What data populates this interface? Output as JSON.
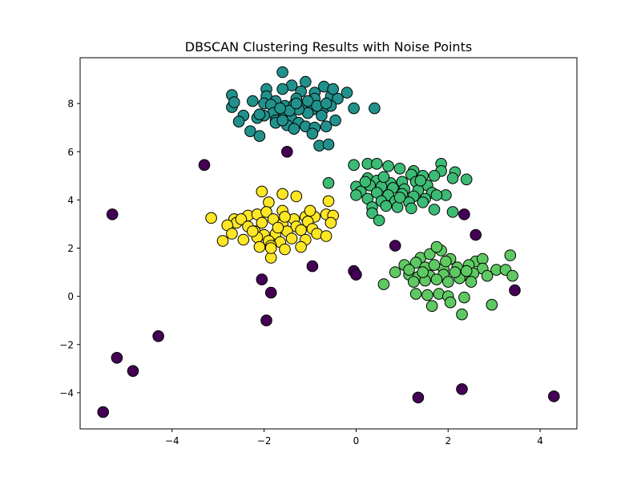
{
  "chart_data": {
    "type": "scatter",
    "title": "DBSCAN Clustering Results with Noise Points",
    "xlabel": "",
    "ylabel": "",
    "xlim": [
      -6.0,
      4.8
    ],
    "ylim": [
      -5.5,
      9.9
    ],
    "xticks": [
      -4,
      -2,
      0,
      2,
      4
    ],
    "yticks": [
      -4,
      -2,
      0,
      2,
      4,
      6,
      8
    ],
    "xtick_labels": [
      "−4",
      "−2",
      "0",
      "2",
      "4"
    ],
    "ytick_labels": [
      "−4",
      "−2",
      "0",
      "2",
      "4",
      "6",
      "8"
    ],
    "grid": false,
    "legend": "none",
    "marker_edge_color": "#000000",
    "series": [
      {
        "color": "#440154",
        "points": [
          [
            -5.5,
            -4.8
          ],
          [
            -5.2,
            -2.55
          ],
          [
            -4.85,
            -3.1
          ],
          [
            -4.3,
            -1.65
          ],
          [
            -5.3,
            3.4
          ],
          [
            -3.3,
            5.45
          ],
          [
            -1.5,
            6.0
          ],
          [
            -2.05,
            0.7
          ],
          [
            -1.85,
            0.15
          ],
          [
            -1.95,
            -1.0
          ],
          [
            -0.95,
            1.25
          ],
          [
            -0.05,
            1.05
          ],
          [
            0.0,
            0.9
          ],
          [
            0.85,
            2.1
          ],
          [
            1.35,
            -4.2
          ],
          [
            2.3,
            -3.85
          ],
          [
            2.35,
            3.4
          ],
          [
            2.6,
            2.55
          ],
          [
            3.45,
            0.25
          ],
          [
            4.3,
            -4.15
          ]
        ]
      },
      {
        "color": "#21918c",
        "points": [
          [
            -1.6,
            9.3
          ],
          [
            -1.4,
            8.75
          ],
          [
            -1.1,
            8.9
          ],
          [
            -0.7,
            8.7
          ],
          [
            -0.2,
            8.45
          ],
          [
            -1.95,
            8.6
          ],
          [
            -2.7,
            8.35
          ],
          [
            -1.95,
            8.3
          ],
          [
            -1.6,
            8.6
          ],
          [
            -1.2,
            8.5
          ],
          [
            -0.9,
            8.45
          ],
          [
            -0.55,
            8.3
          ],
          [
            -0.4,
            8.2
          ],
          [
            -1.3,
            8.2
          ],
          [
            -1.75,
            8.1
          ],
          [
            -2.0,
            8.0
          ],
          [
            -1.85,
            7.95
          ],
          [
            -1.55,
            7.9
          ],
          [
            -2.25,
            8.1
          ],
          [
            -2.7,
            7.85
          ],
          [
            -2.65,
            8.05
          ],
          [
            -1.35,
            7.95
          ],
          [
            -1.15,
            7.85
          ],
          [
            -0.95,
            7.75
          ],
          [
            -0.7,
            7.8
          ],
          [
            -0.55,
            7.9
          ],
          [
            -0.05,
            7.8
          ],
          [
            0.4,
            7.8
          ],
          [
            -1.8,
            7.6
          ],
          [
            -2.0,
            7.5
          ],
          [
            -2.15,
            7.4
          ],
          [
            -2.45,
            7.5
          ],
          [
            -2.55,
            7.25
          ],
          [
            -1.75,
            7.3
          ],
          [
            -1.55,
            7.5
          ],
          [
            -1.4,
            7.35
          ],
          [
            -1.25,
            7.2
          ],
          [
            -1.1,
            7.05
          ],
          [
            -0.9,
            7.0
          ],
          [
            -0.65,
            7.05
          ],
          [
            -0.45,
            7.3
          ],
          [
            -0.75,
            7.5
          ],
          [
            -1.5,
            7.1
          ],
          [
            -1.75,
            7.2
          ],
          [
            -2.3,
            6.85
          ],
          [
            -2.1,
            6.65
          ],
          [
            -1.6,
            7.3
          ],
          [
            -1.35,
            6.95
          ],
          [
            -0.95,
            6.75
          ],
          [
            -0.8,
            6.25
          ],
          [
            -0.6,
            6.3
          ],
          [
            -0.9,
            8.2
          ],
          [
            -1.05,
            7.6
          ],
          [
            -1.25,
            7.75
          ],
          [
            -1.45,
            7.7
          ],
          [
            -1.65,
            7.8
          ],
          [
            -2.1,
            7.55
          ],
          [
            -1.3,
            8.0
          ],
          [
            -1.05,
            8.1
          ],
          [
            -0.85,
            7.9
          ],
          [
            -0.5,
            8.6
          ],
          [
            -0.65,
            8.0
          ]
        ]
      },
      {
        "color": "#5ec962",
        "points": [
          [
            1.85,
            1.9
          ],
          [
            1.4,
            1.6
          ],
          [
            1.6,
            1.75
          ],
          [
            1.75,
            2.05
          ],
          [
            2.05,
            1.55
          ],
          [
            2.6,
            1.45
          ],
          [
            2.75,
            1.55
          ],
          [
            3.35,
            1.7
          ],
          [
            1.05,
            1.3
          ],
          [
            1.3,
            1.4
          ],
          [
            1.5,
            1.2
          ],
          [
            1.9,
            1.15
          ],
          [
            2.2,
            1.2
          ],
          [
            2.45,
            1.3
          ],
          [
            2.75,
            1.15
          ],
          [
            3.05,
            1.1
          ],
          [
            3.25,
            1.1
          ],
          [
            3.4,
            0.85
          ],
          [
            0.85,
            1.0
          ],
          [
            1.15,
            0.9
          ],
          [
            1.35,
            0.8
          ],
          [
            1.6,
            0.85
          ],
          [
            1.9,
            0.9
          ],
          [
            2.3,
            0.85
          ],
          [
            2.55,
            0.95
          ],
          [
            2.85,
            0.85
          ],
          [
            1.25,
            0.6
          ],
          [
            1.5,
            0.65
          ],
          [
            1.75,
            0.7
          ],
          [
            2.0,
            0.6
          ],
          [
            2.25,
            0.75
          ],
          [
            2.5,
            0.6
          ],
          [
            0.6,
            0.5
          ],
          [
            1.3,
            0.1
          ],
          [
            1.55,
            0.05
          ],
          [
            1.8,
            0.1
          ],
          [
            2.0,
            0.0
          ],
          [
            2.35,
            -0.05
          ],
          [
            2.95,
            -0.35
          ],
          [
            1.65,
            -0.4
          ],
          [
            2.05,
            -0.25
          ],
          [
            2.3,
            -0.75
          ],
          [
            1.95,
            1.45
          ],
          [
            1.7,
            1.3
          ],
          [
            2.15,
            1.0
          ],
          [
            2.4,
            1.05
          ],
          [
            1.45,
            1.0
          ],
          [
            1.15,
            1.1
          ]
        ]
      },
      {
        "color": "#fde725",
        "points": [
          [
            -2.05,
            4.35
          ],
          [
            -1.6,
            4.25
          ],
          [
            -1.3,
            4.15
          ],
          [
            -0.6,
            3.95
          ],
          [
            -1.9,
            3.9
          ],
          [
            -3.15,
            3.25
          ],
          [
            -2.65,
            3.2
          ],
          [
            -2.6,
            3.05
          ],
          [
            -2.35,
            3.35
          ],
          [
            -2.15,
            3.4
          ],
          [
            -1.95,
            3.5
          ],
          [
            -1.6,
            3.55
          ],
          [
            -1.35,
            3.2
          ],
          [
            -1.1,
            3.3
          ],
          [
            -0.9,
            3.3
          ],
          [
            -0.65,
            3.4
          ],
          [
            -0.5,
            3.35
          ],
          [
            -2.5,
            3.2
          ],
          [
            -2.8,
            2.95
          ],
          [
            -2.35,
            2.9
          ],
          [
            -2.05,
            3.05
          ],
          [
            -1.8,
            3.2
          ],
          [
            -1.6,
            3.0
          ],
          [
            -1.3,
            2.9
          ],
          [
            -1.05,
            3.1
          ],
          [
            -0.55,
            3.05
          ],
          [
            -2.7,
            2.6
          ],
          [
            -2.2,
            2.7
          ],
          [
            -2.0,
            2.55
          ],
          [
            -1.75,
            2.6
          ],
          [
            -1.5,
            2.7
          ],
          [
            -1.2,
            2.75
          ],
          [
            -0.95,
            2.8
          ],
          [
            -0.85,
            2.6
          ],
          [
            -0.65,
            2.5
          ],
          [
            -2.9,
            2.3
          ],
          [
            -2.45,
            2.35
          ],
          [
            -2.15,
            2.45
          ],
          [
            -1.9,
            2.3
          ],
          [
            -1.65,
            2.25
          ],
          [
            -1.4,
            2.4
          ],
          [
            -1.1,
            2.35
          ],
          [
            -2.1,
            2.05
          ],
          [
            -1.85,
            2.1
          ],
          [
            -1.55,
            1.95
          ],
          [
            -1.2,
            2.05
          ],
          [
            -1.85,
            1.6
          ],
          [
            -1.55,
            3.3
          ],
          [
            -2.25,
            2.7
          ],
          [
            -1.7,
            2.85
          ],
          [
            -1.0,
            3.55
          ],
          [
            -1.85,
            2.0
          ]
        ]
      },
      {
        "color": "#3cbb75",
        "points": [
          [
            -0.05,
            5.45
          ],
          [
            0.25,
            5.5
          ],
          [
            0.45,
            5.5
          ],
          [
            0.7,
            5.4
          ],
          [
            0.95,
            5.3
          ],
          [
            1.25,
            5.2
          ],
          [
            1.85,
            5.5
          ],
          [
            1.85,
            5.2
          ],
          [
            2.15,
            5.15
          ],
          [
            2.4,
            4.85
          ],
          [
            2.1,
            4.9
          ],
          [
            1.7,
            5.0
          ],
          [
            1.45,
            5.0
          ],
          [
            1.2,
            5.05
          ],
          [
            0.25,
            4.9
          ],
          [
            0.45,
            4.8
          ],
          [
            0.75,
            4.7
          ],
          [
            1.0,
            4.75
          ],
          [
            1.3,
            4.75
          ],
          [
            1.55,
            4.6
          ],
          [
            0.0,
            4.55
          ],
          [
            0.3,
            4.6
          ],
          [
            0.55,
            4.55
          ],
          [
            0.8,
            4.5
          ],
          [
            1.05,
            4.45
          ],
          [
            1.35,
            4.4
          ],
          [
            1.65,
            4.3
          ],
          [
            1.95,
            4.2
          ],
          [
            -0.6,
            4.7
          ],
          [
            0.1,
            4.35
          ],
          [
            0.45,
            4.3
          ],
          [
            0.7,
            4.2
          ],
          [
            1.0,
            4.25
          ],
          [
            1.25,
            4.15
          ],
          [
            1.5,
            4.05
          ],
          [
            1.75,
            4.2
          ],
          [
            0.0,
            4.2
          ],
          [
            0.25,
            4.05
          ],
          [
            0.55,
            3.95
          ],
          [
            0.85,
            3.95
          ],
          [
            1.15,
            3.9
          ],
          [
            1.45,
            3.9
          ],
          [
            0.35,
            3.7
          ],
          [
            0.65,
            3.75
          ],
          [
            0.9,
            3.7
          ],
          [
            1.2,
            3.65
          ],
          [
            1.7,
            3.6
          ],
          [
            0.35,
            3.45
          ],
          [
            0.5,
            3.15
          ],
          [
            2.1,
            3.5
          ],
          [
            0.2,
            4.75
          ],
          [
            0.6,
            4.95
          ],
          [
            1.4,
            4.8
          ],
          [
            0.95,
            4.1
          ]
        ]
      }
    ]
  }
}
